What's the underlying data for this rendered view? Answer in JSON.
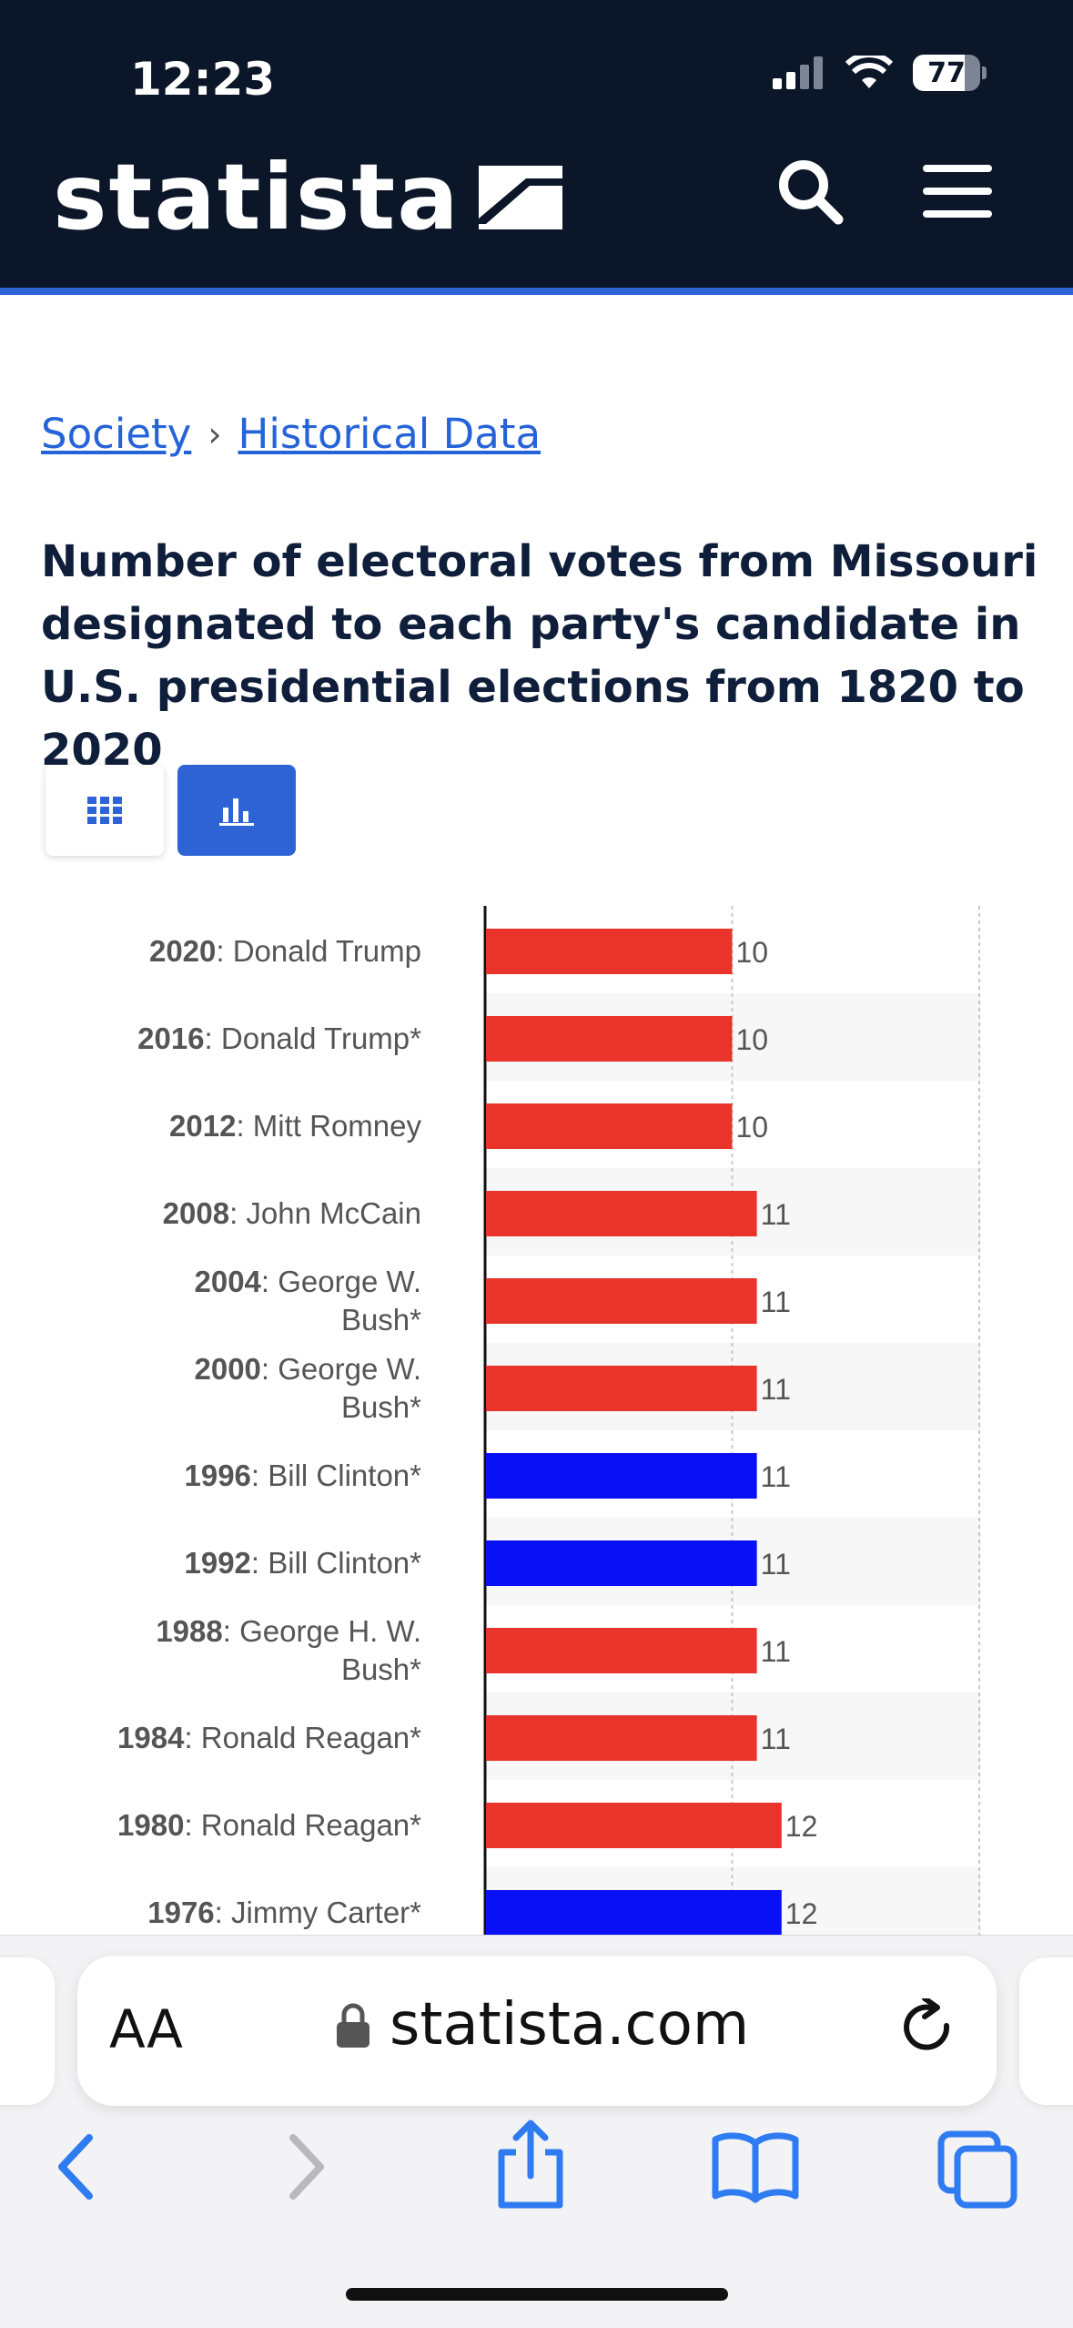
{
  "status": {
    "time": "12:23",
    "battery": "77"
  },
  "header": {
    "logo": "statista",
    "icons": [
      "search-icon",
      "menu-icon"
    ]
  },
  "breadcrumb": {
    "items": [
      "Society",
      "Historical Data"
    ],
    "separator": "›"
  },
  "page": {
    "title": "Number of electoral votes from Missouri designated to each party's candidate in U.S. presidential elections from 1820 to 2020"
  },
  "view_toggle": {
    "icons": [
      "table-grid-icon",
      "bar-chart-icon"
    ],
    "active": "bar-chart-icon"
  },
  "colors": {
    "republican": "#e8342a",
    "democrat": "#0a10f5",
    "brand": "#0b1629",
    "accent": "#2e63d6"
  },
  "chart_data": {
    "type": "bar",
    "orientation": "horizontal",
    "categories": [
      {
        "year": "2020",
        "name": ": Donald Trump"
      },
      {
        "year": "2016",
        "name": ": Donald Trump*"
      },
      {
        "year": "2012",
        "name": ": Mitt Romney"
      },
      {
        "year": "2008",
        "name": ": John McCain"
      },
      {
        "year": "2004",
        "name": ": George W. Bush*"
      },
      {
        "year": "2000",
        "name": ": George W. Bush*"
      },
      {
        "year": "1996",
        "name": ": Bill Clinton*"
      },
      {
        "year": "1992",
        "name": ": Bill Clinton*"
      },
      {
        "year": "1988",
        "name": ": George H. W. Bush*"
      },
      {
        "year": "1984",
        "name": ": Ronald Reagan*"
      },
      {
        "year": "1980",
        "name": ": Ronald Reagan*"
      },
      {
        "year": "1976",
        "name": ": Jimmy Carter*"
      }
    ],
    "values": [
      10,
      10,
      10,
      11,
      11,
      11,
      11,
      11,
      11,
      11,
      12,
      12
    ],
    "party": [
      "republican",
      "republican",
      "republican",
      "republican",
      "republican",
      "republican",
      "democrat",
      "democrat",
      "republican",
      "republican",
      "republican",
      "democrat"
    ],
    "xlim": [
      0,
      20
    ],
    "gridlines": [
      10,
      20
    ]
  },
  "browser": {
    "text_size_label": "AA",
    "url": "statista.com"
  }
}
